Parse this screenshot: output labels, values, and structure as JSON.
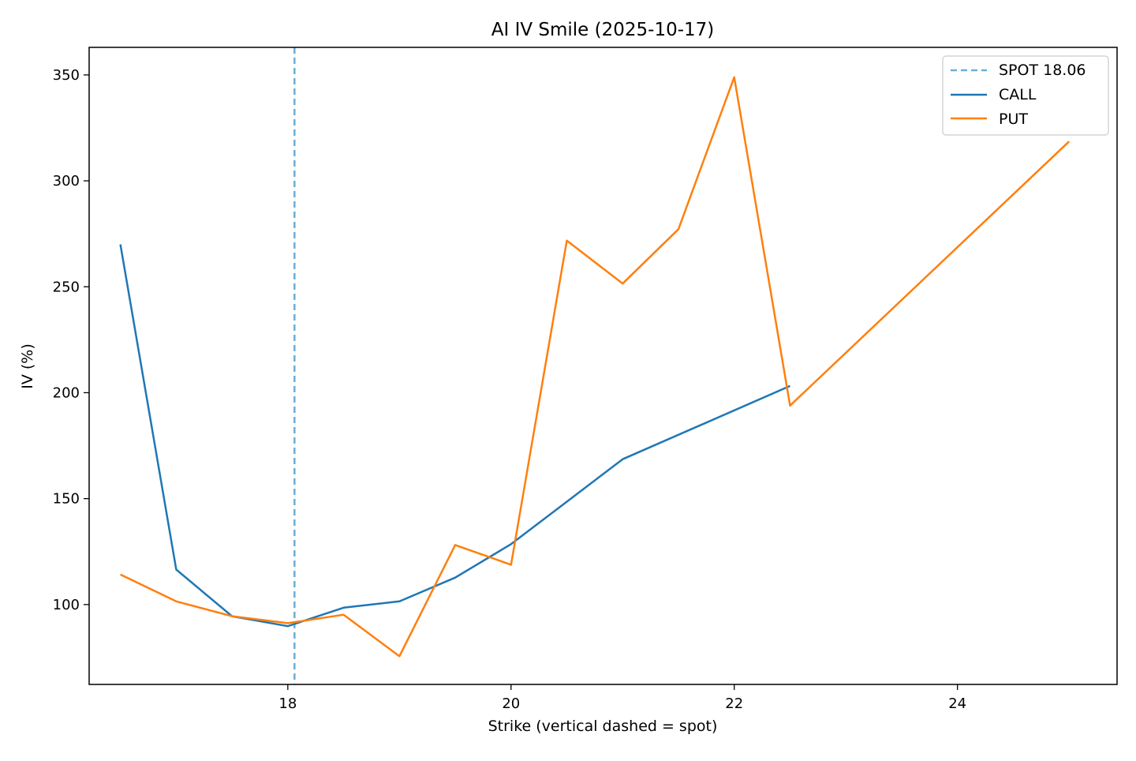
{
  "chart_data": {
    "type": "line",
    "title": "AI IV Smile (2025-10-17)",
    "xlabel": "Strike (vertical dashed = spot)",
    "ylabel": "IV (%)",
    "xlim": [
      16.22,
      25.43
    ],
    "ylim": [
      62.3,
      363
    ],
    "x_ticks": [
      18,
      20,
      22,
      24
    ],
    "y_ticks": [
      100,
      150,
      200,
      250,
      300,
      350
    ],
    "grid": false,
    "legend_position": "top-right",
    "spot": {
      "label": "SPOT 18.06",
      "value": 18.06,
      "color": "#6baed6"
    },
    "series": [
      {
        "name": "CALL",
        "color": "#1f77b4",
        "x": [
          16.5,
          17.0,
          17.5,
          18.0,
          18.5,
          19.0,
          19.5,
          20.0,
          21.0,
          22.5
        ],
        "y": [
          270.0,
          116.5,
          94.5,
          89.8,
          98.5,
          101.5,
          112.7,
          128.5,
          168.6,
          203.2
        ]
      },
      {
        "name": "PUT",
        "color": "#ff7f0e",
        "x": [
          16.5,
          17.0,
          17.5,
          18.0,
          18.5,
          19.0,
          19.5,
          20.0,
          20.5,
          21.0,
          21.5,
          22.0,
          22.5,
          25.0
        ],
        "y": [
          114.2,
          101.5,
          94.5,
          91.2,
          95.2,
          75.6,
          128.1,
          118.8,
          271.8,
          251.5,
          277.2,
          348.9,
          193.9,
          318.6
        ]
      }
    ]
  }
}
